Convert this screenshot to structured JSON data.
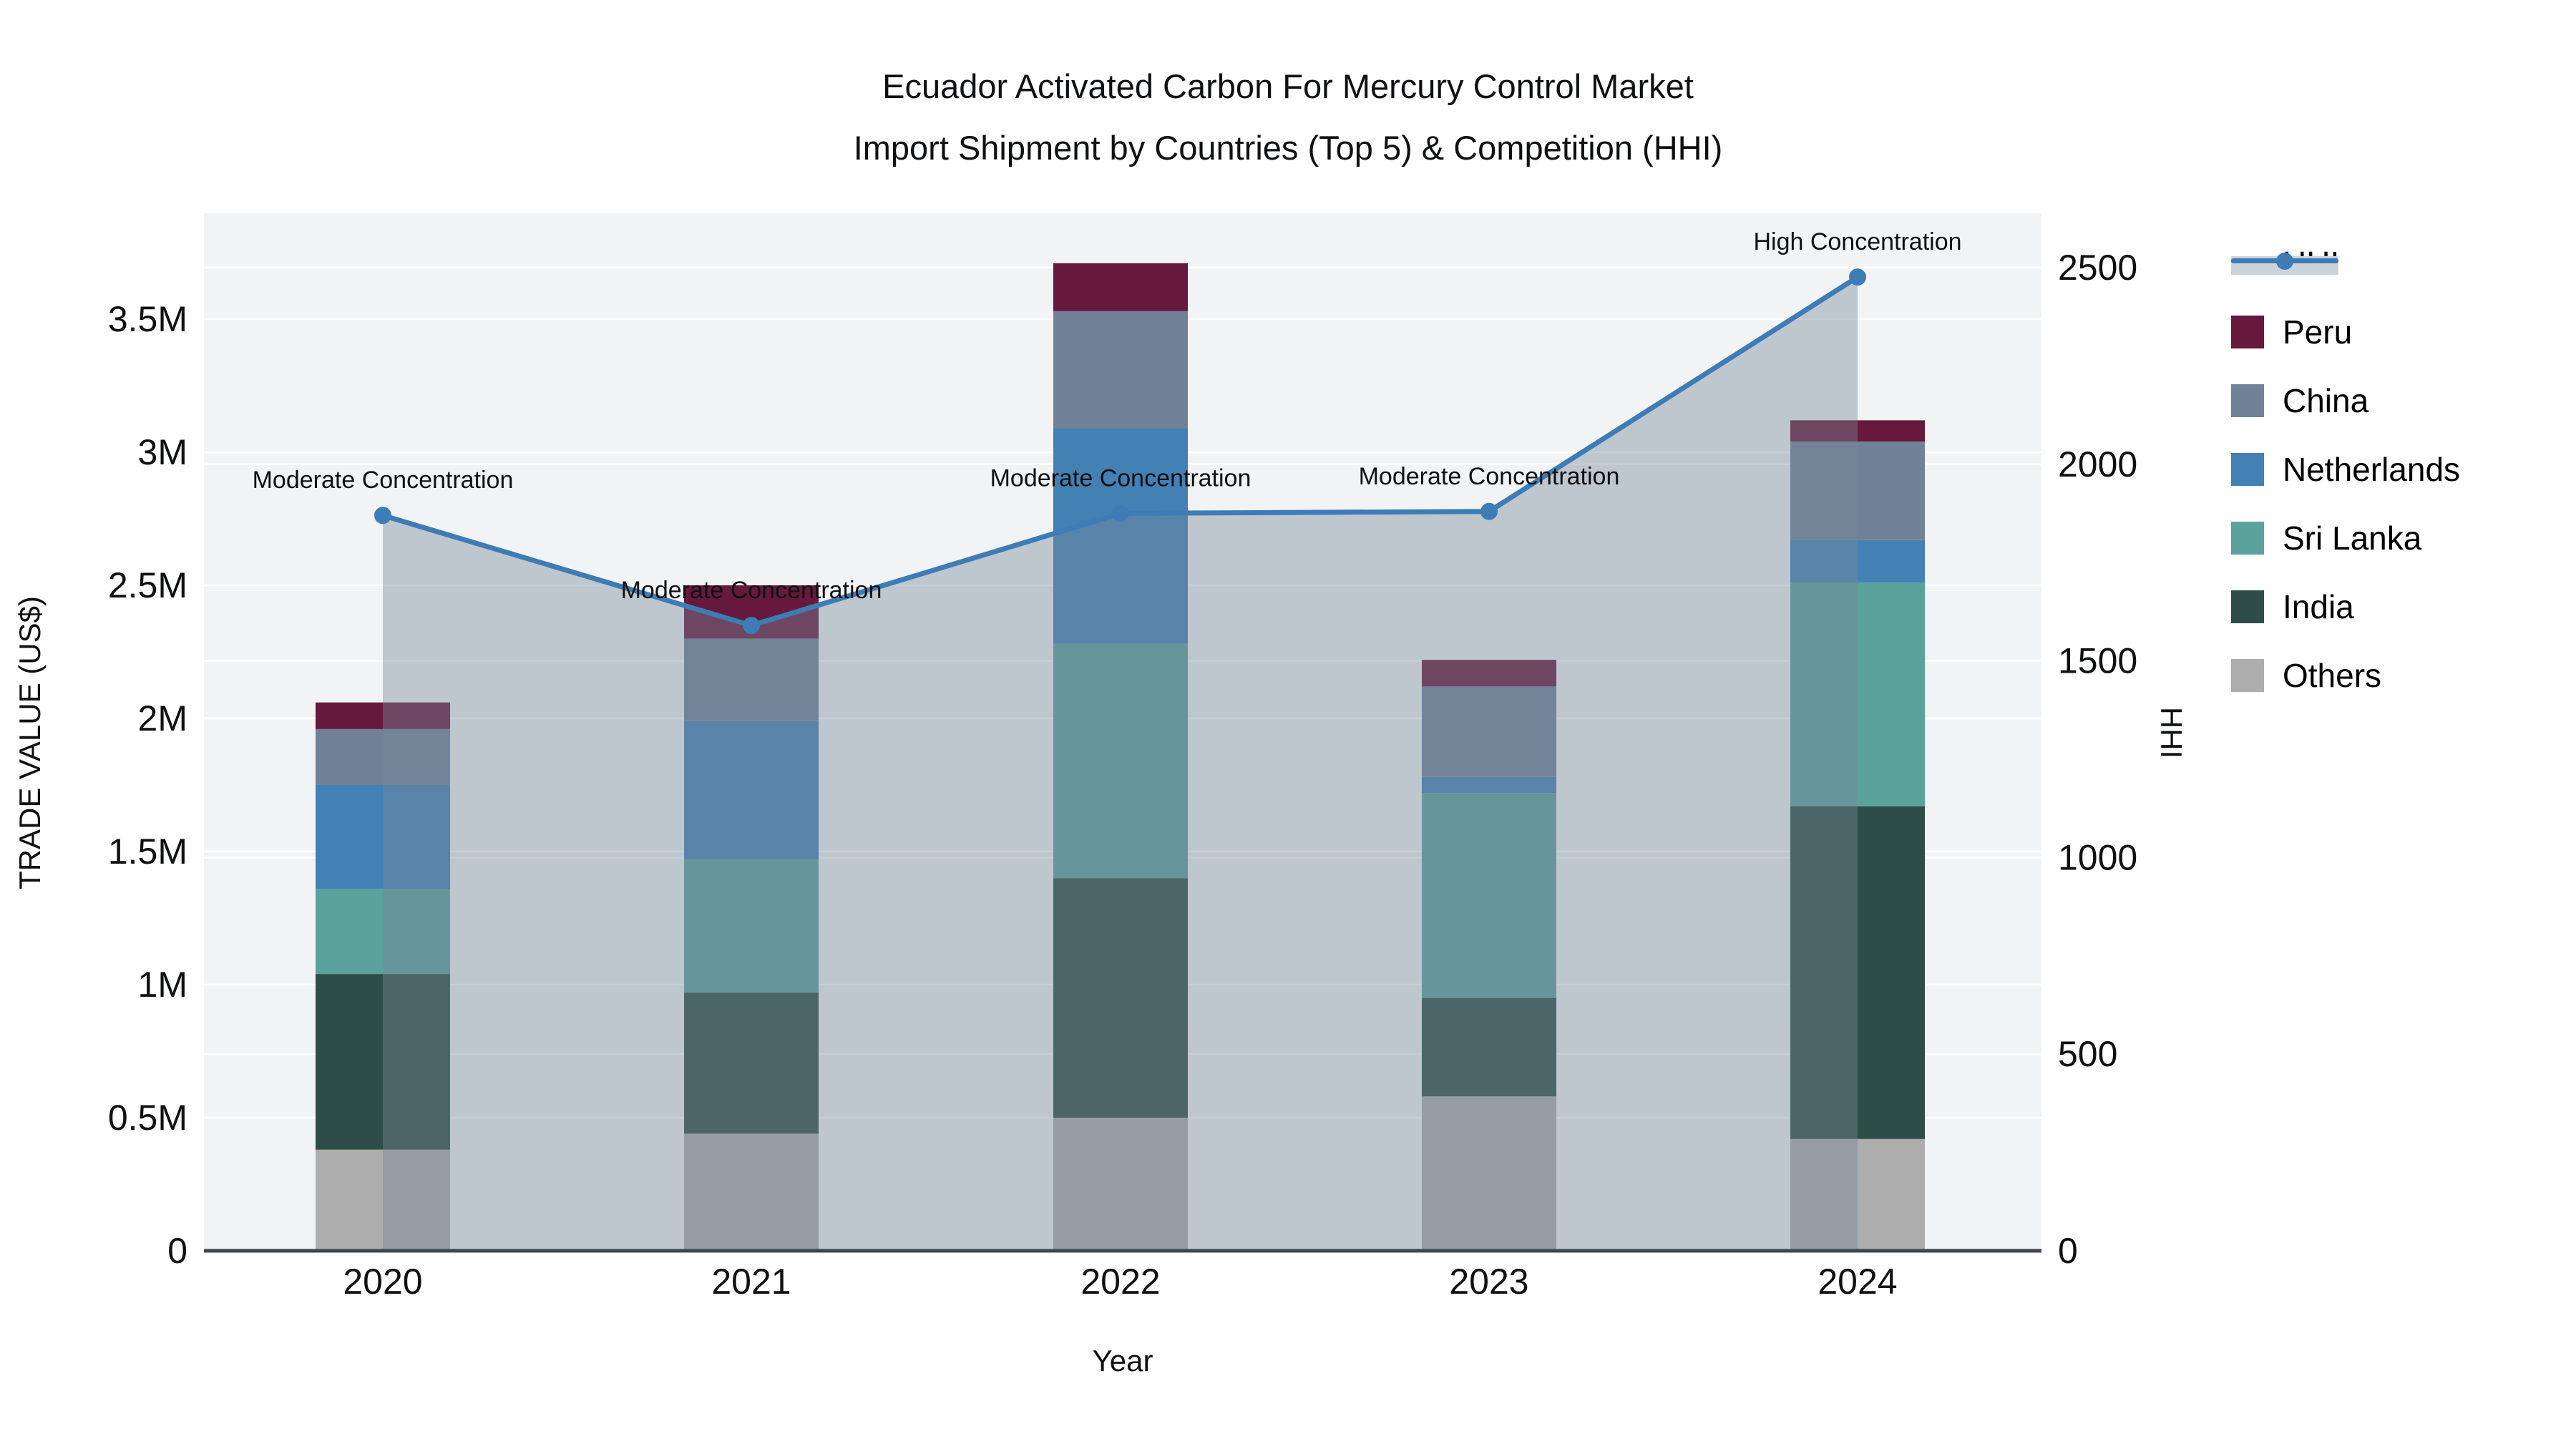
{
  "title": {
    "line1": "Ecuador Activated Carbon For Mercury Control Market",
    "line2": "Import Shipment by Countries (Top 5) & Competition (HHI)"
  },
  "axes": {
    "y_left_title": "TRADE VALUE (US$)",
    "y_right_title": "HHI",
    "x_title": "Year",
    "y_left_ticks": [
      {
        "label": "0",
        "value": 0
      },
      {
        "label": "0.5M",
        "value": 0.5
      },
      {
        "label": "1M",
        "value": 1
      },
      {
        "label": "1.5M",
        "value": 1.5
      },
      {
        "label": "2M",
        "value": 2
      },
      {
        "label": "2.5M",
        "value": 2.5
      },
      {
        "label": "3M",
        "value": 3
      },
      {
        "label": "3.5M",
        "value": 3.5
      }
    ],
    "y_right_ticks": [
      {
        "label": "0",
        "value": 0
      },
      {
        "label": "500",
        "value": 500
      },
      {
        "label": "1000",
        "value": 1000
      },
      {
        "label": "1500",
        "value": 1500
      },
      {
        "label": "2000",
        "value": 2000
      },
      {
        "label": "2500",
        "value": 2500
      }
    ]
  },
  "chart_data": {
    "type": "combo-stacked-bar-line",
    "categories": [
      "2020",
      "2021",
      "2022",
      "2023",
      "2024"
    ],
    "bar_unit": "USD millions",
    "stack_order_bottom_to_top": [
      "Others",
      "India",
      "Sri Lanka",
      "Netherlands",
      "China",
      "Peru"
    ],
    "series": [
      {
        "name": "Others",
        "color": "#acadac",
        "values": [
          0.38,
          0.44,
          0.5,
          0.58,
          0.42
        ]
      },
      {
        "name": "India",
        "color": "#2e4d48",
        "values": [
          0.66,
          0.53,
          0.9,
          0.37,
          1.25
        ]
      },
      {
        "name": "Sri Lanka",
        "color": "#5ba19c",
        "values": [
          0.32,
          0.5,
          0.88,
          0.77,
          0.84
        ]
      },
      {
        "name": "Netherlands",
        "color": "#4381b5",
        "values": [
          0.39,
          0.52,
          0.81,
          0.06,
          0.16
        ]
      },
      {
        "name": "China",
        "color": "#708298",
        "values": [
          0.21,
          0.31,
          0.44,
          0.34,
          0.37
        ]
      },
      {
        "name": "Peru",
        "color": "#66193c",
        "values": [
          0.1,
          0.2,
          0.18,
          0.1,
          0.08
        ]
      }
    ],
    "bar_totals": [
      2.06,
      2.5,
      3.71,
      2.22,
      3.12
    ],
    "line_series": {
      "name": "HHI",
      "color": "#3d7cb5",
      "area_fill": "rgba(119,136,153,0.42)",
      "values": [
        1870,
        1590,
        1875,
        1880,
        2476
      ]
    },
    "annotations": [
      {
        "year": "2020",
        "text": "Moderate Concentration"
      },
      {
        "year": "2021",
        "text": "Moderate Concentration"
      },
      {
        "year": "2022",
        "text": "Moderate Concentration"
      },
      {
        "year": "2023",
        "text": "Moderate Concentration"
      },
      {
        "year": "2024",
        "text": "High Concentration"
      }
    ],
    "y_left_range_musd": [
      0,
      3.9
    ],
    "y_right_range": [
      0,
      2500
    ],
    "grid": "on",
    "plot_bg": "#f2f3f4",
    "grid_color": "#ffffff",
    "axis_line_color": "#40464e",
    "legend_position": "right"
  },
  "legend": {
    "items": [
      {
        "label": "HHI",
        "glyph": "line-marker",
        "color": "#3d7cb5"
      },
      {
        "label": "Peru",
        "glyph": "square",
        "color": "#66193c"
      },
      {
        "label": "China",
        "glyph": "square",
        "color": "#708298"
      },
      {
        "label": "Netherlands",
        "glyph": "square",
        "color": "#4381b5"
      },
      {
        "label": "Sri Lanka",
        "glyph": "square",
        "color": "#5ba19c"
      },
      {
        "label": "India",
        "glyph": "square",
        "color": "#2e4d48"
      },
      {
        "label": "Others",
        "glyph": "square",
        "color": "#acadac"
      }
    ]
  }
}
